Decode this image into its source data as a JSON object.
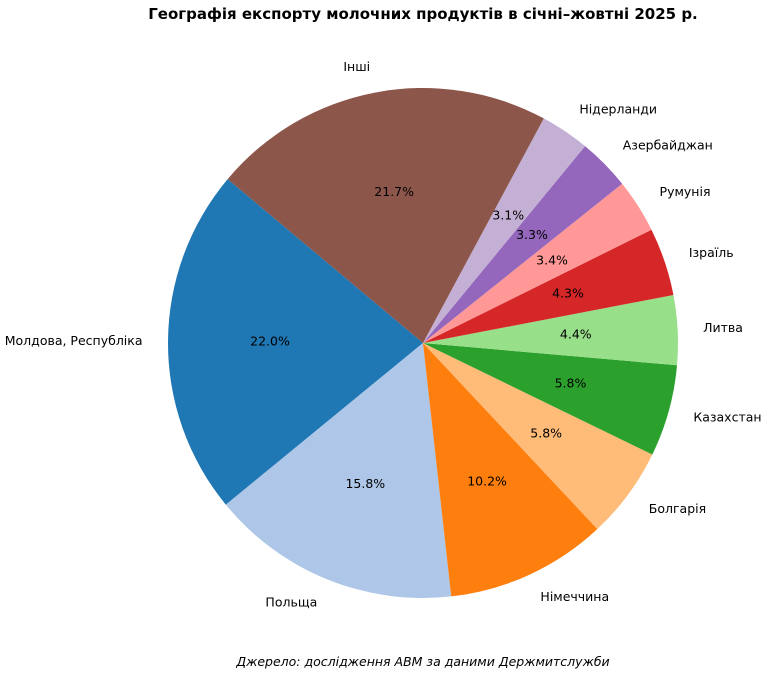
{
  "chart_data": {
    "type": "pie",
    "title": "Географія експорту молочних продуктів в січні–жовтні 2025 р.",
    "source": "Джерело: дослідження АВМ за даними Держмитслужби",
    "start_angle_deg": 140,
    "direction": "counterclockwise",
    "slices": [
      {
        "label": "Молдова, Республіка",
        "value": 22.0,
        "pct_label": "22.0%",
        "color": "#1f77b4"
      },
      {
        "label": "Польща",
        "value": 15.8,
        "pct_label": "15.8%",
        "color": "#aec7e8"
      },
      {
        "label": "Німеччина",
        "value": 10.2,
        "pct_label": "10.2%",
        "color": "#ff7f0e"
      },
      {
        "label": "Болгарія",
        "value": 5.8,
        "pct_label": "5.8%",
        "color": "#ffbb78"
      },
      {
        "label": "Казахстан",
        "value": 5.8,
        "pct_label": "5.8%",
        "color": "#2ca02c"
      },
      {
        "label": "Литва",
        "value": 4.4,
        "pct_label": "4.4%",
        "color": "#98df8a"
      },
      {
        "label": "Ізраїль",
        "value": 4.3,
        "pct_label": "4.3%",
        "color": "#d62728"
      },
      {
        "label": "Румунія",
        "value": 3.4,
        "pct_label": "3.4%",
        "color": "#ff9896"
      },
      {
        "label": "Азербайджан",
        "value": 3.3,
        "pct_label": "3.3%",
        "color": "#9467bd"
      },
      {
        "label": "Нідерланди",
        "value": 3.1,
        "pct_label": "3.1%",
        "color": "#c5b0d5"
      },
      {
        "label": "Інші",
        "value": 21.7,
        "pct_label": "21.7%",
        "color": "#8c564b"
      }
    ]
  }
}
